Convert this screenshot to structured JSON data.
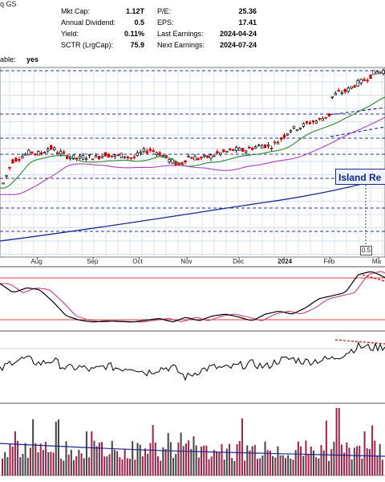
{
  "header": {
    "title_fragment": "q GS",
    "fields": [
      {
        "label": "Mkt Cap:",
        "value": "1.12T"
      },
      {
        "label": "Annual Dividend:",
        "value": "0.5"
      },
      {
        "label": "Yield:",
        "value": "0.11%"
      },
      {
        "label": "SCTR (LrgCap):",
        "value": "75.9"
      }
    ],
    "fields_right": [
      {
        "label": "P/E:",
        "value": "25.36"
      },
      {
        "label": "EPS:",
        "value": "17.41"
      },
      {
        "label": "Last Earnings:",
        "value": "2024-04-24"
      },
      {
        "label": "Next Earnings:",
        "value": "2024-07-24"
      }
    ],
    "optionable_fragment": "able:",
    "optionable_value": "yes"
  },
  "annotation": {
    "text": "Island Re",
    "marker_label": "0.5"
  },
  "colors": {
    "up": "#000000",
    "down": "#cc0000",
    "ma_green": "#2e8b2e",
    "ma_purple": "#b040c0",
    "ma_navy": "#1a2b8c",
    "trend": "#2233aa",
    "grid": "#c8d8f0",
    "macd": "#000000",
    "signal": "#c03070",
    "volume_bar": "#a0204a",
    "volume_avg": "#1a2b8c"
  },
  "chart_data": {
    "type": "candlestick",
    "x_axis_labels": [
      "Aug",
      "Sep",
      "Oct",
      "Nov",
      "Dec",
      "2024",
      "Feb",
      "Ma"
    ],
    "x_axis_bold": "2024",
    "x_axis_positions_rel": [
      0.097,
      0.242,
      0.361,
      0.486,
      0.621,
      0.738,
      0.857,
      0.983
    ],
    "price": {
      "trend": [
        0.12,
        0.32,
        0.36,
        0.4,
        0.38,
        0.44,
        0.4,
        0.36,
        0.34,
        0.36,
        0.35,
        0.38,
        0.36,
        0.37,
        0.34,
        0.4,
        0.42,
        0.38,
        0.32,
        0.28,
        0.36,
        0.34,
        0.35,
        0.38,
        0.4,
        0.42,
        0.41,
        0.44,
        0.46,
        0.45,
        0.52,
        0.6,
        0.62,
        0.66,
        0.68,
        0.72,
        0.78,
        0.8,
        0.86,
        0.9,
        0.96,
        0.98
      ]
    },
    "panels": [
      "price",
      "full_stoch",
      "rsi",
      "volume"
    ]
  }
}
